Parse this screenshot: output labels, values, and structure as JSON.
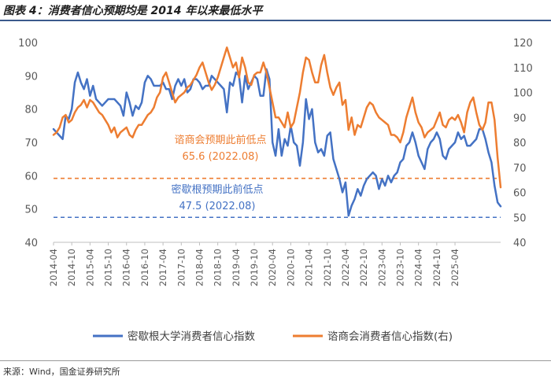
{
  "header": {
    "title": "图表 4：消费者信心预期均是 2014 年以来最低水平"
  },
  "footer": {
    "source": "来源：Wind，国金证券研究所"
  },
  "chart_data": {
    "type": "line",
    "title": "图表 4：消费者信心预期均是 2014 年以来最低水平",
    "x_start": "2014-04",
    "x_tick_labels": [
      "2014-04",
      "2014-10",
      "2015-04",
      "2015-10",
      "2016-04",
      "2016-10",
      "2017-04",
      "2017-10",
      "2018-04",
      "2018-10",
      "2019-04",
      "2019-10",
      "2020-04",
      "2020-10",
      "2021-04",
      "2021-10",
      "2022-04",
      "2022-10",
      "2023-04",
      "2023-10",
      "2024-04",
      "2024-10",
      "2025-04"
    ],
    "y_left": {
      "min": 40,
      "max": 100,
      "ticks": [
        40,
        50,
        60,
        70,
        80,
        90,
        100
      ]
    },
    "y_right": {
      "min": 40,
      "max": 120,
      "ticks": [
        40,
        50,
        60,
        70,
        80,
        90,
        100,
        110,
        120
      ]
    },
    "series": [
      {
        "name": "密歇根大学消费者信心指数",
        "axis": "left",
        "color": "#4472c4",
        "values": [
          74,
          73,
          72,
          71,
          78,
          77,
          80,
          88,
          91,
          88,
          86,
          89,
          84,
          87,
          83,
          82,
          81,
          82,
          83,
          83,
          83,
          82,
          81,
          78,
          85,
          82,
          78,
          81,
          80,
          82,
          88,
          90,
          89,
          87,
          87,
          87,
          88,
          86,
          86,
          83,
          87,
          89,
          87,
          89,
          85,
          86,
          89,
          89,
          88,
          86,
          87,
          87,
          90,
          89,
          88,
          87,
          86,
          79,
          88,
          87,
          91,
          90,
          82,
          90,
          86,
          88,
          90,
          89,
          84,
          84,
          92,
          89,
          70,
          66,
          74,
          66,
          71,
          69,
          75,
          70,
          69,
          63,
          70,
          83,
          77,
          80,
          70,
          67,
          68,
          66,
          72,
          73,
          65,
          62,
          59,
          55,
          58,
          48,
          51,
          53,
          56,
          54,
          57,
          59,
          60,
          61,
          60,
          56,
          59,
          57,
          60,
          58,
          60,
          61,
          64,
          65,
          69,
          70,
          73,
          70,
          66,
          64,
          62,
          68,
          70,
          71,
          73,
          71,
          66,
          65,
          68,
          69,
          70,
          73,
          71,
          72,
          69,
          69,
          70,
          71,
          74,
          74,
          71,
          67,
          64,
          57,
          52,
          50.8
        ]
      },
      {
        "name": "谘商会消费者信心指数(右)",
        "axis": "right",
        "color": "#ed7d31",
        "values": [
          83,
          84,
          86,
          90,
          91,
          88,
          89,
          92,
          94,
          95,
          97,
          94,
          97,
          96,
          94,
          92,
          91,
          89,
          87,
          84,
          86,
          82,
          84,
          85,
          86,
          83,
          82,
          85,
          87,
          87,
          89,
          91,
          92,
          94,
          98,
          100,
          106,
          108,
          104,
          100,
          96,
          98,
          99,
          100,
          102,
          103,
          105,
          107,
          110,
          112,
          108,
          104,
          101,
          103,
          106,
          110,
          114,
          118,
          114,
          110,
          112,
          106,
          114,
          110,
          104,
          103,
          107,
          108,
          108,
          112,
          108,
          102,
          96,
          90,
          90,
          88,
          86,
          92,
          86,
          88,
          94,
          100,
          108,
          114,
          113,
          108,
          104,
          104,
          111,
          115,
          108,
          102,
          99,
          102,
          104,
          95,
          97,
          85,
          90,
          83,
          87,
          86,
          90,
          94,
          96,
          95,
          92,
          90,
          89,
          88,
          87,
          83,
          83,
          82,
          80,
          84,
          90,
          94,
          98,
          92,
          88,
          86,
          82,
          84,
          85,
          86,
          89,
          92,
          87,
          86,
          89,
          90,
          89,
          91,
          88,
          84,
          92,
          96,
          98,
          92,
          87,
          85,
          88,
          96,
          96,
          89,
          74,
          62
        ]
      }
    ],
    "reference_lines": [
      {
        "axis": "right",
        "value": 65.6,
        "color": "#ed7d31",
        "label_line1": "谘商会预期此前低点",
        "label_line2": "65.6 (2022.08)"
      },
      {
        "axis": "left",
        "value": 47.5,
        "color": "#4472c4",
        "label_line1": "密歇根预期此前低点",
        "label_line2": "47.5 (2022.08)"
      }
    ]
  }
}
